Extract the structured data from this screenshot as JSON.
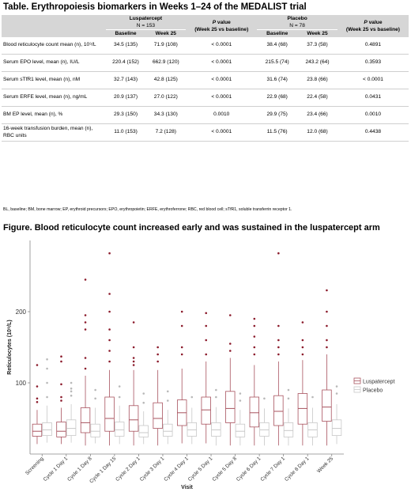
{
  "table": {
    "title": "Table. Erythropoiesis biomarkers in Weeks 1–24 of the MEDALIST trial",
    "group_luspatercept": "Luspatercept",
    "group_luspatercept_n": "N = 153",
    "group_placebo": "Placebo",
    "group_placebo_n": "N = 78",
    "col_baseline": "Baseline",
    "col_week25": "Week 25",
    "col_pvalue_italic": "P",
    "col_pvalue_rest": " value",
    "col_pvalue_sub": "(Week 25 vs baseline)",
    "rows": [
      {
        "label": "Blood reticulocyte count mean (n), 10⁹/L",
        "lb": "34.5 (135)",
        "lw": "71.9 (108)",
        "lp": "< 0.0001",
        "pb": "38.4 (68)",
        "pw": "37.3 (58)",
        "pp": "0.4891"
      },
      {
        "label": "Serum EPO level, mean (n), IU/L",
        "lb": "220.4 (152)",
        "lw": "662.9 (120)",
        "lp": "< 0.0001",
        "pb": "215.5 (74)",
        "pw": "243.2 (64)",
        "pp": "0.3593"
      },
      {
        "label": "Serum sTfR1 level, mean (n), nM",
        "lb": "32.7 (143)",
        "lw": "42.8 (125)",
        "lp": "< 0.0001",
        "pb": "31.6 (74)",
        "pw": "23.8 (66)",
        "pp": "< 0.0001"
      },
      {
        "label": "Serum ERFE level, mean (n), ng/mL",
        "lb": "20.9 (137)",
        "lw": "27.0 (122)",
        "lp": "< 0.0001",
        "pb": "22.9 (68)",
        "pw": "22.4 (58)",
        "pp": "0.0431"
      },
      {
        "label": "BM EP level, mean (n), %",
        "lb": "29.3 (150)",
        "lw": "34.3 (130)",
        "lp": "0.0010",
        "pb": "29.9 (75)",
        "pw": "23.4 (66)",
        "pp": "0.0010"
      },
      {
        "label": "16-week transfusion burden, mean (n), RBC units",
        "lb": "11.0 (153)",
        "lw": "7.2 (128)",
        "lp": "< 0.0001",
        "pb": "11.5 (76)",
        "pw": "12.0 (68)",
        "pp": "0.4438"
      }
    ],
    "footnote": "BL, baseline; BM, bone marrow; EP, erythroid precursors; EPO, erythropoietin; ERFE, erythroferrone; RBC, red blood cell; sTfR1, soluble transferrin receptor 1."
  },
  "figure_title": "Figure. Blood reticulocyte count increased early and was sustained in the luspatercept arm",
  "colors": {
    "luspatercept": "#a8525e",
    "placebo": "#c8c8c8",
    "header_bg": "#d6d6d6"
  },
  "chart_data": {
    "type": "box",
    "xlabel": "Visit",
    "ylabel": "Reticulocytes (10⁹/L)",
    "ylim": [
      0,
      300
    ],
    "yticks": [
      100,
      200
    ],
    "grid": false,
    "legend_position": "right",
    "categories": [
      "Screening",
      "Cycle 1 Day 1",
      "Cycle 1 Day 8",
      "Cycle 1 Day 15",
      "Cycle 2 Day 1",
      "Cycle 3 Day 1",
      "Cycle 4 Day 1",
      "Cycle 5 Day 1",
      "Cycle 5 Day 8",
      "Cycle 6 Day 1",
      "Cycle 7 Day 1",
      "Cycle 8 Day 1",
      "Week 25"
    ],
    "series": [
      {
        "name": "Luspatercept",
        "boxes": [
          {
            "min": 14,
            "q1": 25,
            "median": 32,
            "q3": 42,
            "max": 62,
            "outliers": [
              73,
              78,
              95,
              125
            ]
          },
          {
            "min": 14,
            "q1": 24,
            "median": 32,
            "q3": 45,
            "max": 65,
            "outliers": [
              75,
              80,
              98,
              130,
              137
            ]
          },
          {
            "min": 12,
            "q1": 30,
            "median": 44,
            "q3": 65,
            "max": 110,
            "outliers": [
              120,
              135,
              175,
              185,
              195,
              245
            ]
          },
          {
            "min": 12,
            "q1": 32,
            "median": 50,
            "q3": 80,
            "max": 118,
            "outliers": [
              130,
              145,
              160,
              175,
              200,
              225,
              282
            ]
          },
          {
            "min": 12,
            "q1": 32,
            "median": 48,
            "q3": 68,
            "max": 118,
            "outliers": [
              125,
              130,
              135,
              150,
              185
            ]
          },
          {
            "min": 12,
            "q1": 36,
            "median": 50,
            "q3": 72,
            "max": 118,
            "outliers": [
              130,
              140,
              150
            ]
          },
          {
            "min": 15,
            "q1": 40,
            "median": 58,
            "q3": 76,
            "max": 120,
            "outliers": [
              140,
              150,
              180,
              200
            ]
          },
          {
            "min": 15,
            "q1": 42,
            "median": 62,
            "q3": 80,
            "max": 130,
            "outliers": [
              140,
              160,
              180,
              198
            ]
          },
          {
            "min": 12,
            "q1": 44,
            "median": 64,
            "q3": 88,
            "max": 135,
            "outliers": [
              145,
              155,
              195
            ]
          },
          {
            "min": 12,
            "q1": 38,
            "median": 58,
            "q3": 80,
            "max": 125,
            "outliers": [
              140,
              150,
              165,
              180,
              190
            ]
          },
          {
            "min": 12,
            "q1": 40,
            "median": 60,
            "q3": 82,
            "max": 130,
            "outliers": [
              140,
              150,
              160,
              180,
              282
            ]
          },
          {
            "min": 12,
            "q1": 42,
            "median": 64,
            "q3": 85,
            "max": 132,
            "outliers": [
              140,
              150,
              160,
              185
            ]
          },
          {
            "min": 12,
            "q1": 46,
            "median": 66,
            "q3": 90,
            "max": 140,
            "outliers": [
              150,
              160,
              180,
              200,
              230
            ]
          }
        ]
      },
      {
        "name": "Placebo",
        "boxes": [
          {
            "min": 16,
            "q1": 26,
            "median": 34,
            "q3": 44,
            "max": 68,
            "outliers": [
              80,
              100,
              120,
              133
            ]
          },
          {
            "min": 16,
            "q1": 26,
            "median": 36,
            "q3": 48,
            "max": 70,
            "outliers": [
              82,
              88,
              92,
              100
            ]
          },
          {
            "min": 15,
            "q1": 24,
            "median": 32,
            "q3": 42,
            "max": 65,
            "outliers": [
              78,
              90
            ]
          },
          {
            "min": 14,
            "q1": 25,
            "median": 34,
            "q3": 45,
            "max": 68,
            "outliers": [
              80,
              95
            ]
          },
          {
            "min": 14,
            "q1": 24,
            "median": 30,
            "q3": 40,
            "max": 60,
            "outliers": [
              72,
              85
            ]
          },
          {
            "min": 14,
            "q1": 25,
            "median": 32,
            "q3": 42,
            "max": 62,
            "outliers": [
              75,
              88
            ]
          },
          {
            "min": 14,
            "q1": 25,
            "median": 34,
            "q3": 44,
            "max": 65,
            "outliers": [
              80
            ]
          },
          {
            "min": 12,
            "q1": 25,
            "median": 34,
            "q3": 44,
            "max": 66,
            "outliers": [
              80,
              90
            ]
          },
          {
            "min": 12,
            "q1": 24,
            "median": 32,
            "q3": 42,
            "max": 62,
            "outliers": [
              75,
              85
            ]
          },
          {
            "min": 12,
            "q1": 25,
            "median": 34,
            "q3": 44,
            "max": 64,
            "outliers": [
              78
            ]
          },
          {
            "min": 12,
            "q1": 24,
            "median": 33,
            "q3": 44,
            "max": 64,
            "outliers": [
              78,
              90
            ]
          },
          {
            "min": 12,
            "q1": 24,
            "median": 34,
            "q3": 44,
            "max": 65,
            "outliers": [
              80
            ]
          },
          {
            "min": 14,
            "q1": 26,
            "median": 36,
            "q3": 48,
            "max": 70,
            "outliers": [
              85,
              95
            ]
          }
        ]
      }
    ]
  }
}
